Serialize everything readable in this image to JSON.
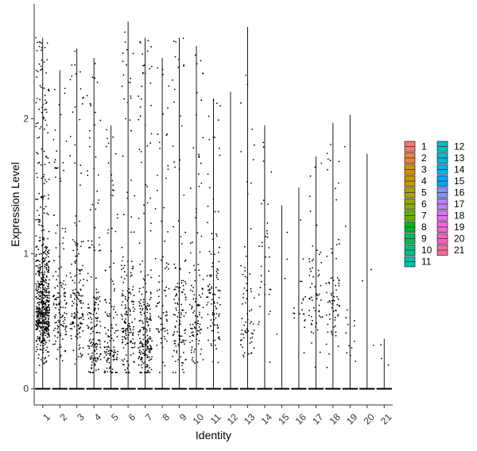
{
  "chart_data": {
    "type": "violin",
    "xlabel": "Identity",
    "ylabel": "Expression Level",
    "categories": [
      "1",
      "2",
      "3",
      "4",
      "5",
      "6",
      "7",
      "8",
      "9",
      "10",
      "11",
      "12",
      "13",
      "14",
      "15",
      "16",
      "17",
      "18",
      "19",
      "20",
      "21"
    ],
    "ylim": [
      -0.12,
      2.85
    ],
    "yticks": [
      0,
      1,
      2
    ],
    "grid": false,
    "legend": {
      "position": "right",
      "columns": [
        [
          "1",
          "2",
          "3",
          "4",
          "5",
          "6",
          "7",
          "8",
          "9",
          "10",
          "11"
        ],
        [
          "12",
          "13",
          "14",
          "15",
          "16",
          "17",
          "18",
          "19",
          "20",
          "21"
        ]
      ],
      "colors": [
        "#F8766D",
        "#EC8239",
        "#DB8E00",
        "#C79800",
        "#AEA200",
        "#8FAA00",
        "#64B200",
        "#00B81B",
        "#00BD5C",
        "#00C085",
        "#00C1A7",
        "#00BFC4",
        "#00BADE",
        "#00B2F3",
        "#00A6FF",
        "#7F96FF",
        "#BC81FF",
        "#E26EF7",
        "#F863DF",
        "#FF62BF",
        "#FF6A9A"
      ]
    },
    "series": [
      {
        "name": "1",
        "max": 2.6,
        "nonzero_points": 620,
        "center": 0.6
      },
      {
        "name": "2",
        "max": 2.36,
        "nonzero_points": 140,
        "center": 0.55
      },
      {
        "name": "3",
        "max": 2.52,
        "nonzero_points": 160,
        "center": 0.55
      },
      {
        "name": "4",
        "max": 2.45,
        "nonzero_points": 160,
        "center": 0.35
      },
      {
        "name": "5",
        "max": 1.95,
        "nonzero_points": 130,
        "center": 0.28
      },
      {
        "name": "6",
        "max": 2.72,
        "nonzero_points": 170,
        "center": 0.45
      },
      {
        "name": "7",
        "max": 2.6,
        "nonzero_points": 230,
        "center": 0.35
      },
      {
        "name": "8",
        "max": 2.45,
        "nonzero_points": 80,
        "center": 0.5
      },
      {
        "name": "9",
        "max": 2.6,
        "nonzero_points": 130,
        "center": 0.45
      },
      {
        "name": "10",
        "max": 2.54,
        "nonzero_points": 110,
        "center": 0.45
      },
      {
        "name": "11",
        "max": 2.15,
        "nonzero_points": 110,
        "center": 0.6
      },
      {
        "name": "12",
        "max": 2.2,
        "nonzero_points": 0,
        "center": 0.5
      },
      {
        "name": "13",
        "max": 2.68,
        "nonzero_points": 70,
        "center": 0.5
      },
      {
        "name": "14",
        "max": 1.95,
        "nonzero_points": 35,
        "center": 0.8
      },
      {
        "name": "15",
        "max": 1.36,
        "nonzero_points": 4,
        "center": 0.9
      },
      {
        "name": "16",
        "max": 1.49,
        "nonzero_points": 20,
        "center": 0.6
      },
      {
        "name": "17",
        "max": 1.72,
        "nonzero_points": 60,
        "center": 0.7
      },
      {
        "name": "18",
        "max": 1.97,
        "nonzero_points": 70,
        "center": 0.6
      },
      {
        "name": "19",
        "max": 2.03,
        "nonzero_points": 14,
        "center": 0.45
      },
      {
        "name": "20",
        "max": 1.74,
        "nonzero_points": 3,
        "center": 1.0
      },
      {
        "name": "21",
        "max": 0.37,
        "nonzero_points": 3,
        "center": 0.25
      }
    ]
  }
}
